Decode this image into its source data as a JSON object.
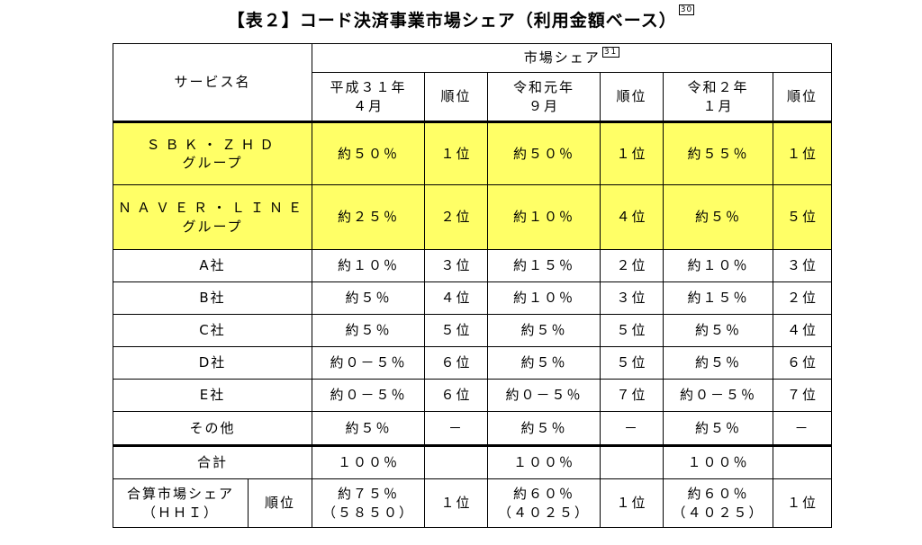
{
  "title": "【表２】コード決済事業市場シェア（利用金額ベース）",
  "title_footnote": "30",
  "header": {
    "service_name": "サービス名",
    "market_share": "市場シェア",
    "market_share_footnote": "31",
    "periods": [
      {
        "line1": "平成３１年",
        "line2": "４月"
      },
      {
        "line1": "令和元年",
        "line2": "９月"
      },
      {
        "line1": "令和２年",
        "line2": "１月"
      }
    ],
    "rank": "順位"
  },
  "rows": [
    {
      "name1": "ＳＢＫ・ＺＨＤ",
      "name2": "グループ",
      "cells": [
        "約５０％",
        "１位",
        "約５０％",
        "１位",
        "約５５％",
        "１位"
      ]
    },
    {
      "name1": "ＮＡＶＥＲ・ＬＩＮＥ",
      "name2": "グループ",
      "cells": [
        "約２５％",
        "２位",
        "約１０％",
        "４位",
        "約５％",
        "５位"
      ]
    },
    {
      "name1": "A社",
      "cells": [
        "約１０％",
        "３位",
        "約１５％",
        "２位",
        "約１０％",
        "３位"
      ]
    },
    {
      "name1": "B社",
      "cells": [
        "約５％",
        "４位",
        "約１０％",
        "３位",
        "約１５％",
        "２位"
      ]
    },
    {
      "name1": "C社",
      "cells": [
        "約５％",
        "５位",
        "約５％",
        "５位",
        "約５％",
        "４位"
      ]
    },
    {
      "name1": "D社",
      "cells": [
        "約０－５％",
        "６位",
        "約５％",
        "５位",
        "約５％",
        "６位"
      ]
    },
    {
      "name1": "E社",
      "cells": [
        "約０－５％",
        "６位",
        "約０－５％",
        "７位",
        "約０－５％",
        "７位"
      ]
    },
    {
      "name1": "その他",
      "cells": [
        "約５％",
        "－",
        "約５％",
        "－",
        "約５％",
        "－"
      ]
    }
  ],
  "total": {
    "label": "合計",
    "cells": [
      "１００％",
      "",
      "１００％",
      "",
      "１００％",
      ""
    ]
  },
  "combined": {
    "label1": "合算市場シェア",
    "label2": "（ＨＨＩ）",
    "rank_label": "順位",
    "cells": [
      {
        "v1": "約７５％",
        "v2": "（５８５０）",
        "rank": "１位"
      },
      {
        "v1": "約６０％",
        "v2": "（４０２５）",
        "rank": "１位"
      },
      {
        "v1": "約６０％",
        "v2": "（４０２５）",
        "rank": "１位"
      }
    ]
  },
  "colors": {
    "highlight": "#ffff66",
    "border": "#000000"
  }
}
